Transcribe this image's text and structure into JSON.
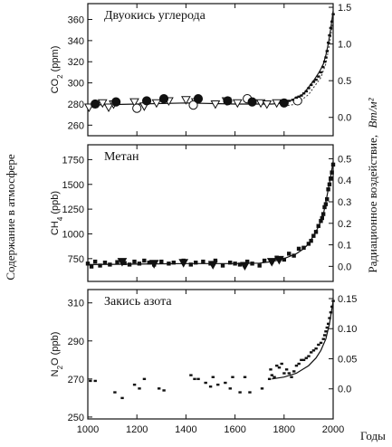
{
  "left_label": "Содержание в атмосфере",
  "right_label": "Радиационное воздействие,",
  "right_label_unit": "Вт/м²",
  "x_axis_label": "Годы",
  "x_ticks": [
    "1000",
    "1200",
    "1400",
    "1600",
    "1800",
    "2000"
  ],
  "chart_data": [
    {
      "type": "scatter",
      "title": "Двуокись углерода",
      "ylabel_main": "CO",
      "ylabel_sub": "2",
      "ylabel_unit": " (ppm)",
      "xlim": [
        1000,
        2000
      ],
      "ylim": [
        250,
        375
      ],
      "y_ticks": [
        "260",
        "280",
        "300",
        "320",
        "340",
        "360"
      ],
      "y2lim": [
        -0.25,
        1.55
      ],
      "y2_ticks": [
        "0.0",
        "0.5",
        "1.0",
        "1.5"
      ],
      "series": [
        {
          "marker": "triangle",
          "x": [
            1005,
            1060,
            1085,
            1105,
            1190,
            1230,
            1280,
            1330,
            1400,
            1440,
            1520,
            1565,
            1610,
            1705,
            1730,
            1770
          ],
          "y": [
            277,
            281,
            277,
            280,
            282,
            278,
            281,
            283,
            284,
            282,
            280,
            283,
            281,
            281,
            280,
            281
          ]
        },
        {
          "marker": "circle",
          "x": [
            1030,
            1115,
            1200,
            1240,
            1310,
            1430,
            1450,
            1570,
            1650,
            1670,
            1800,
            1855
          ],
          "y": [
            280,
            282,
            276,
            283,
            285,
            279,
            285,
            283,
            285,
            282,
            281,
            283
          ]
        },
        {
          "marker": "dot",
          "x": [
            1820,
            1835,
            1850,
            1860,
            1870,
            1880,
            1890,
            1900,
            1910,
            1920,
            1930,
            1940,
            1950,
            1958,
            1965,
            1970,
            1975,
            1980,
            1985,
            1990,
            1995,
            2000
          ],
          "y": [
            283,
            284,
            286,
            287,
            288,
            290,
            292,
            295,
            298,
            301,
            303,
            306,
            310,
            315,
            320,
            324,
            330,
            338,
            345,
            352,
            358,
            365
          ]
        }
      ],
      "fit_line": {
        "x": [
          1000,
          1200,
          1400,
          1600,
          1750,
          1800,
          1850,
          1880,
          1900,
          1920,
          1940,
          1950,
          1960,
          1970,
          1980,
          1990,
          2000
        ],
        "y": [
          279,
          280,
          281,
          280,
          280,
          281,
          285,
          290,
          296,
          302,
          309,
          313,
          318,
          326,
          337,
          351,
          368
        ]
      },
      "fit_line_lower": {
        "x": [
          1800,
          1850,
          1900,
          1950,
          1970,
          1990,
          2000
        ],
        "y": [
          278,
          280,
          289,
          305,
          318,
          343,
          360
        ]
      }
    },
    {
      "type": "scatter",
      "title": "Метан",
      "ylabel_main": "CH",
      "ylabel_sub": "4",
      "ylabel_unit": " (ppb)",
      "xlim": [
        1000,
        2000
      ],
      "ylim": [
        520,
        1900
      ],
      "y_ticks": [
        "750",
        "1000",
        "1250",
        "1500",
        "1750"
      ],
      "y2lim": [
        -0.07,
        0.565
      ],
      "y2_ticks": [
        "0.0",
        "0.1",
        "0.2",
        "0.3",
        "0.4",
        "0.5"
      ],
      "series": [
        {
          "marker": "square",
          "x": [
            1000,
            1015,
            1030,
            1050,
            1070,
            1090,
            1120,
            1150,
            1170,
            1190,
            1210,
            1230,
            1250,
            1270,
            1300,
            1330,
            1350,
            1390,
            1420,
            1440,
            1470,
            1500,
            1520,
            1550,
            1580,
            1600,
            1620,
            1650,
            1670,
            1700,
            1720,
            1750,
            1770,
            1800,
            1820,
            1840,
            1860,
            1880,
            1900,
            1910,
            1920,
            1930,
            1940,
            1950,
            1955,
            1960,
            1965,
            1970,
            1975,
            1980,
            1985,
            1990,
            1995,
            2000
          ],
          "y": [
            700,
            670,
            720,
            680,
            710,
            690,
            715,
            705,
            690,
            720,
            700,
            730,
            710,
            690,
            720,
            700,
            710,
            730,
            690,
            710,
            720,
            700,
            730,
            680,
            710,
            700,
            690,
            720,
            700,
            680,
            730,
            720,
            760,
            740,
            800,
            780,
            850,
            860,
            900,
            930,
            980,
            1020,
            1080,
            1130,
            1160,
            1200,
            1270,
            1300,
            1350,
            1450,
            1500,
            1560,
            1620,
            1700
          ]
        },
        {
          "marker": "triangle",
          "x": [
            1140,
            1270,
            1390,
            1510,
            1640,
            1750,
            1780
          ],
          "y": [
            720,
            700,
            710,
            690,
            680,
            720,
            740
          ]
        }
      ],
      "fit_line": {
        "x": [
          1000,
          1200,
          1400,
          1600,
          1700,
          1750,
          1800,
          1850,
          1880,
          1900,
          1920,
          1940,
          1950,
          1960,
          1970,
          1980,
          1990,
          2000
        ],
        "y": [
          690,
          695,
          700,
          700,
          705,
          720,
          750,
          800,
          850,
          900,
          980,
          1070,
          1130,
          1200,
          1320,
          1450,
          1580,
          1730
        ]
      }
    },
    {
      "type": "scatter",
      "title": "Закись азота",
      "ylabel_main": "N",
      "ylabel_sub": "2",
      "ylabel_unit": "O (ppb)",
      "xlim": [
        1000,
        2000
      ],
      "ylim": [
        249,
        317
      ],
      "y_ticks": [
        "250",
        "270",
        "290",
        "310"
      ],
      "y2_ticks": [
        "0.0",
        "0.05",
        "0.10",
        "0.15"
      ],
      "y2lim": [
        -0.05,
        0.165
      ],
      "series": [
        {
          "marker": "dot",
          "x": [
            1010,
            1030,
            1110,
            1140,
            1190,
            1210,
            1230,
            1290,
            1310,
            1420,
            1435,
            1450,
            1480,
            1500,
            1510,
            1530,
            1560,
            1580,
            1590,
            1620,
            1640,
            1660,
            1710,
            1740,
            1745,
            1750,
            1760,
            1770,
            1780,
            1790,
            1800,
            1810,
            1820,
            1830,
            1840,
            1850,
            1860,
            1870,
            1880,
            1890,
            1900,
            1910,
            1920,
            1930,
            1940,
            1950,
            1960,
            1965,
            1970,
            1975,
            1980,
            1985,
            1990,
            1995,
            2000
          ],
          "y": [
            269,
            269,
            263,
            260,
            267,
            265,
            270,
            265,
            264,
            272,
            270,
            270,
            268,
            266,
            271,
            267,
            268,
            265,
            271,
            263,
            271,
            263,
            265,
            270,
            275,
            272,
            271,
            277,
            276,
            278,
            273,
            275,
            273,
            271,
            274,
            277,
            278,
            280,
            280,
            281,
            282,
            284,
            285,
            286,
            288,
            289,
            291,
            293,
            295,
            297,
            299,
            302,
            305,
            308,
            311
          ]
        }
      ],
      "fit_line": {
        "x": [
          1750,
          1800,
          1850,
          1900,
          1930,
          1950,
          1970,
          1985,
          2000
        ],
        "y": [
          270,
          271,
          273,
          277,
          281,
          285,
          291,
          299,
          311
        ]
      }
    }
  ]
}
